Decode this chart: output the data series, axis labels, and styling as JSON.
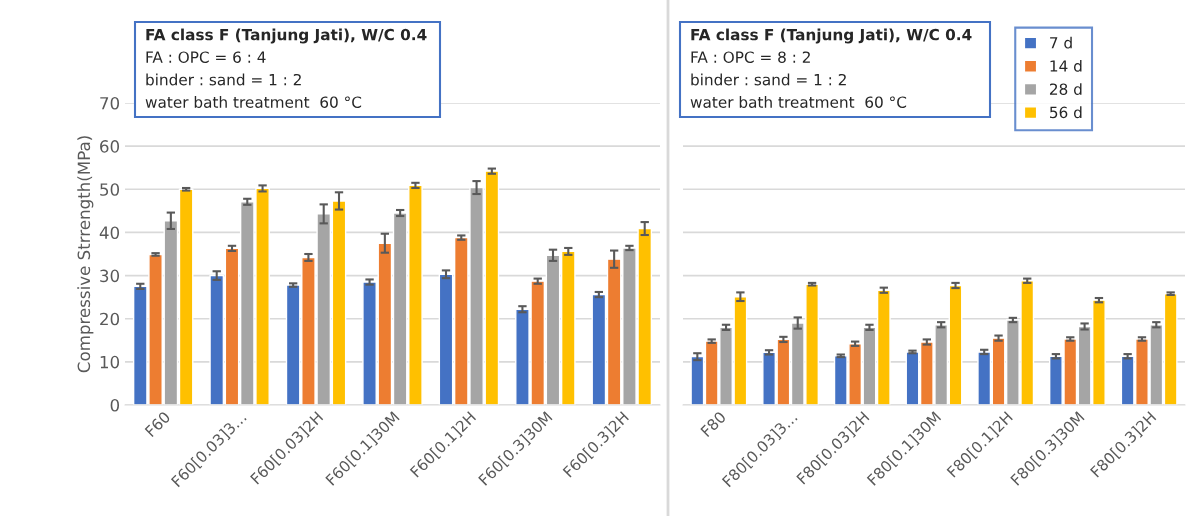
{
  "chart_data": [
    {
      "type": "bar",
      "ylabel": "Compressive Strrength(MPa)",
      "categories": [
        "F60",
        "F60[0.03]3…",
        "F60[0.03]2H",
        "F60[0.1]30M",
        "F60[0.1]2H",
        "F60[0.3]30M",
        "F60[0.3]2H"
      ],
      "series": [
        {
          "color": "#4472c4",
          "values": [
            27.5,
            30.0,
            27.8,
            28.5,
            30.3,
            22.2,
            25.6
          ],
          "errors": [
            0.6,
            1.0,
            0.4,
            0.6,
            0.9,
            0.7,
            0.6
          ]
        },
        {
          "color": "#ed7d31",
          "values": [
            34.9,
            36.3,
            34.2,
            37.5,
            38.8,
            28.7,
            33.8
          ],
          "errors": [
            0.3,
            0.6,
            0.8,
            2.2,
            0.5,
            0.6,
            2.0
          ]
        },
        {
          "color": "#a5a5a5",
          "values": [
            42.7,
            47.1,
            44.3,
            44.5,
            50.4,
            34.7,
            36.4
          ],
          "errors": [
            1.9,
            0.7,
            2.2,
            0.7,
            1.5,
            1.3,
            0.5
          ]
        },
        {
          "color": "#ffc000",
          "values": [
            50.0,
            50.2,
            47.3,
            50.9,
            54.2,
            35.6,
            40.9
          ],
          "errors": [
            0.3,
            0.7,
            2.0,
            0.6,
            0.6,
            0.8,
            1.5
          ]
        }
      ],
      "ylim": [
        0,
        70
      ],
      "yticks": [
        0,
        10,
        20,
        30,
        40,
        50,
        60,
        70
      ],
      "grid": "y",
      "annotations": [
        "FA class F (Tanjung Jati), W/C 0.4",
        "FA : OPC = 6 : 4",
        "binder : sand = 1 : 2",
        "water bath treatment  60 °C"
      ]
    },
    {
      "type": "bar",
      "categories": [
        "F80",
        "F80[0.03]3…",
        "F80[0.03]2H",
        "F80[0.1]30M",
        "F80[0.1]2H",
        "F80[0.3]30M",
        "F80[0.3]2H"
      ],
      "series": [
        {
          "name": "7 d",
          "color": "#4472c4",
          "values": [
            11.2,
            12.2,
            11.4,
            12.3,
            12.3,
            11.3,
            11.3
          ],
          "errors": [
            0.8,
            0.5,
            0.3,
            0.3,
            0.5,
            0.5,
            0.5
          ]
        },
        {
          "name": "14 d",
          "color": "#ed7d31",
          "values": [
            14.8,
            15.2,
            14.2,
            14.6,
            15.5,
            15.3,
            15.3
          ],
          "errors": [
            0.4,
            0.6,
            0.5,
            0.6,
            0.6,
            0.4,
            0.4
          ]
        },
        {
          "name": "28 d",
          "color": "#a5a5a5",
          "values": [
            18.0,
            19.0,
            18.0,
            18.6,
            19.7,
            18.2,
            18.6
          ],
          "errors": [
            0.6,
            1.3,
            0.6,
            0.6,
            0.5,
            0.7,
            0.6
          ]
        },
        {
          "name": "56 d",
          "color": "#ffc000",
          "values": [
            25.1,
            28.0,
            26.6,
            27.7,
            28.8,
            24.3,
            25.8
          ],
          "errors": [
            1.0,
            0.3,
            0.6,
            0.6,
            0.5,
            0.5,
            0.3
          ]
        }
      ],
      "ylim": [
        0,
        70
      ],
      "yticks": [
        0,
        10,
        20,
        30,
        40,
        50,
        60,
        70
      ],
      "grid": "y",
      "legend": "top right",
      "tick_labels": "x",
      "annotations": [
        "FA class F (Tanjung Jati), W/C 0.4",
        "FA : OPC = 8 : 2",
        "binder : sand = 1 : 2",
        "water bath treatment  60 °C"
      ]
    }
  ]
}
